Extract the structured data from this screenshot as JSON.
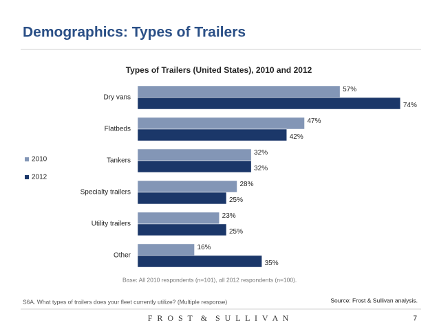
{
  "slide": {
    "title": "Demographics: Types of Trailers",
    "base_note": "Base: All 2010 respondents (n=101), all 2012 respondents (n=100).",
    "question": "S6A. What types of trailers does your fleet currently utilize? (Multiple response)",
    "source": "Source: Frost & Sullivan analysis.",
    "logo": "F R O S T  &  S U L L I V A N",
    "page_number": "7"
  },
  "chart_data": {
    "type": "hbar",
    "title": "Types of Trailers (United States), 2010 and 2012",
    "categories": [
      "Dry vans",
      "Flatbeds",
      "Tankers",
      "Specialty  trailers",
      "Utility trailers",
      "Other"
    ],
    "series": [
      {
        "name": "2010",
        "color": "#8396b6",
        "values": [
          57,
          47,
          32,
          28,
          23,
          16
        ],
        "value_labels": [
          "57%",
          "47%",
          "32%",
          "28%",
          "23%",
          "16%"
        ]
      },
      {
        "name": "2012",
        "color": "#1b3769",
        "values": [
          74,
          42,
          32,
          25,
          25,
          35
        ],
        "value_labels": [
          "74%",
          "42%",
          "32%",
          "25%",
          "25%",
          "35%"
        ]
      }
    ],
    "legend": "left"
  }
}
